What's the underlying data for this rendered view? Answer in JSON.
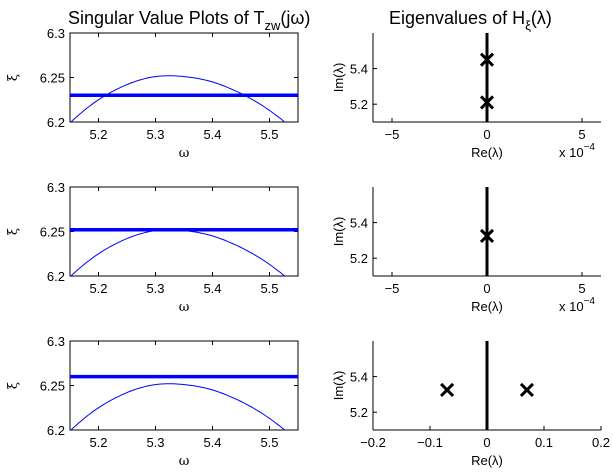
{
  "figure": {
    "left_title": {
      "prefix": "Singular Value Plots of T",
      "sub": "zw",
      "suffix": "(jω)"
    },
    "right_title": {
      "prefix": "Eigenvalues of H",
      "sub": "ξ",
      "suffix": "(λ)"
    }
  },
  "chart_data": [
    {
      "type": "line",
      "xlabel": "ω",
      "ylabel": "ξ",
      "xlim": [
        5.15,
        5.55
      ],
      "ylim": [
        6.2,
        6.3
      ],
      "xticks": [
        "5.2",
        "5.3",
        "5.4",
        "5.5"
      ],
      "yticks": [
        "6.2",
        "6.25",
        "6.3"
      ],
      "curve": {
        "x": [
          5.15,
          5.2,
          5.25,
          5.3,
          5.325,
          5.35,
          5.4,
          5.45,
          5.5,
          5.55
        ],
        "y": [
          6.199,
          6.225,
          6.242,
          6.251,
          6.252,
          6.251,
          6.245,
          6.232,
          6.213,
          6.187
        ]
      },
      "hline": 6.23,
      "color": "#0000ff"
    },
    {
      "type": "scatter",
      "xlabel": "Re(λ)",
      "ylabel": "Im(λ)",
      "xlim": [
        -0.0006,
        0.0006
      ],
      "ylim": [
        5.1,
        5.6
      ],
      "xticks": [
        "−5",
        "0",
        "5"
      ],
      "yticks": [
        "5.2",
        "5.4"
      ],
      "exponent": {
        "base": "x 10",
        "power": "−4"
      },
      "points": [
        {
          "x": 0,
          "y": 5.45
        },
        {
          "x": 0,
          "y": 5.21
        }
      ],
      "imag_axis": "vertical line at Re(λ)=0"
    },
    {
      "type": "line",
      "xlabel": "ω",
      "ylabel": "ξ",
      "xlim": [
        5.15,
        5.55
      ],
      "ylim": [
        6.2,
        6.3
      ],
      "xticks": [
        "5.2",
        "5.3",
        "5.4",
        "5.5"
      ],
      "yticks": [
        "6.2",
        "6.25",
        "6.3"
      ],
      "curve": {
        "x": [
          5.15,
          5.2,
          5.25,
          5.3,
          5.325,
          5.35,
          5.4,
          5.45,
          5.5,
          5.55
        ],
        "y": [
          6.199,
          6.225,
          6.242,
          6.251,
          6.252,
          6.251,
          6.245,
          6.232,
          6.213,
          6.187
        ]
      },
      "hline": 6.252,
      "color": "#0000ff"
    },
    {
      "type": "scatter",
      "xlabel": "Re(λ)",
      "ylabel": "Im(λ)",
      "xlim": [
        -0.0006,
        0.0006
      ],
      "ylim": [
        5.1,
        5.6
      ],
      "xticks": [
        "−5",
        "0",
        "5"
      ],
      "yticks": [
        "5.2",
        "5.4"
      ],
      "exponent": {
        "base": "x 10",
        "power": "−4"
      },
      "points": [
        {
          "x": 0,
          "y": 5.325
        }
      ],
      "imag_axis": "vertical line at Re(λ)=0"
    },
    {
      "type": "line",
      "xlabel": "ω",
      "ylabel": "ξ",
      "xlim": [
        5.15,
        5.55
      ],
      "ylim": [
        6.2,
        6.3
      ],
      "xticks": [
        "5.2",
        "5.3",
        "5.4",
        "5.5"
      ],
      "yticks": [
        "6.2",
        "6.25",
        "6.3"
      ],
      "curve": {
        "x": [
          5.15,
          5.2,
          5.25,
          5.3,
          5.325,
          5.35,
          5.4,
          5.45,
          5.5,
          5.55
        ],
        "y": [
          6.199,
          6.225,
          6.242,
          6.251,
          6.252,
          6.251,
          6.245,
          6.232,
          6.213,
          6.187
        ]
      },
      "hline": 6.26,
      "color": "#0000ff"
    },
    {
      "type": "scatter",
      "xlabel": "Re(λ)",
      "ylabel": "Im(λ)",
      "xlim": [
        -0.2,
        0.2
      ],
      "ylim": [
        5.1,
        5.6
      ],
      "xticks": [
        "−0.2",
        "−0.1",
        "0",
        "0.1",
        "0.2"
      ],
      "yticks": [
        "5.2",
        "5.4"
      ],
      "points": [
        {
          "x": -0.07,
          "y": 5.325
        },
        {
          "x": 0.07,
          "y": 5.325
        }
      ],
      "imag_axis": "vertical line at Re(λ)=0"
    }
  ]
}
